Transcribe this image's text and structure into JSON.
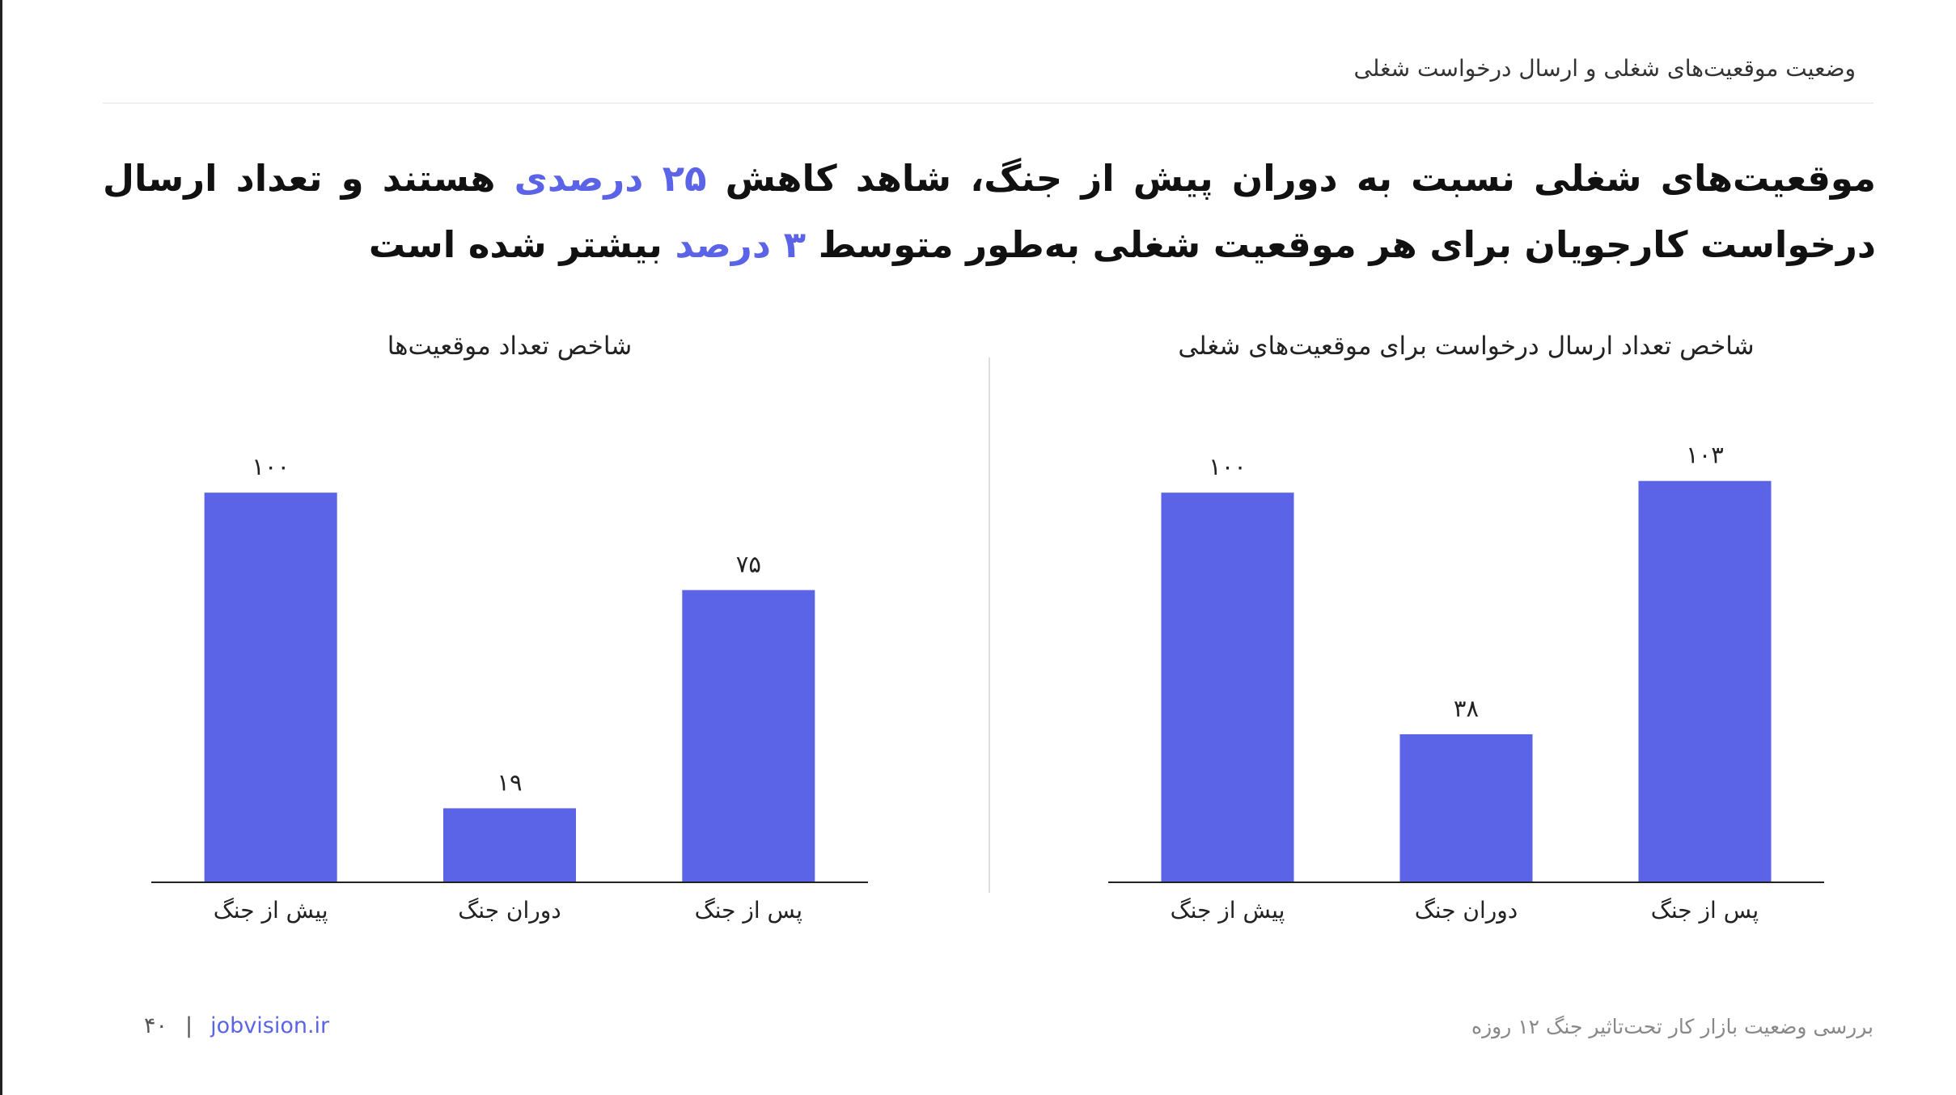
{
  "header": {
    "title": "وضعیت موقعیت‌های شغلی و ارسال درخواست شغلی"
  },
  "headline": [
    "موقعیت‌های شغلی نسبت به دوران پیش از جنگ، شاهد کاهش ",
    "۲۵ درصدی",
    " هستند و تعداد ارسال درخواست کارجویان برای هر موقعیت شغلی به‌طور متوسط ",
    "۳ درصد",
    " بیشتر شده است"
  ],
  "chart_data": [
    {
      "type": "bar",
      "title": "شاخص تعداد موقعیت‌ها",
      "categories": [
        "پیش از جنگ",
        "دوران جنگ",
        "پس از جنگ"
      ],
      "values": [
        100,
        19,
        75
      ],
      "value_labels": [
        "۱۰۰",
        "۱۹",
        "۷۵"
      ],
      "color": "#5b63e6",
      "ylim": [
        0,
        110
      ]
    },
    {
      "type": "bar",
      "title": "شاخص تعداد ارسال درخواست برای موقعیت‌های شغلی",
      "categories": [
        "پیش از جنگ",
        "دوران جنگ",
        "پس از جنگ"
      ],
      "values": [
        100,
        38,
        103
      ],
      "value_labels": [
        "۱۰۰",
        "۳۸",
        "۱۰۳"
      ],
      "color": "#5b63e6",
      "ylim": [
        0,
        110
      ]
    }
  ],
  "footer": {
    "page": "۴۰",
    "separator": "|",
    "site": "jobvision.ir",
    "report": "بررسی وضعیت بازار کار تحت‌تاثیر جنگ ۱۲ روزه"
  }
}
